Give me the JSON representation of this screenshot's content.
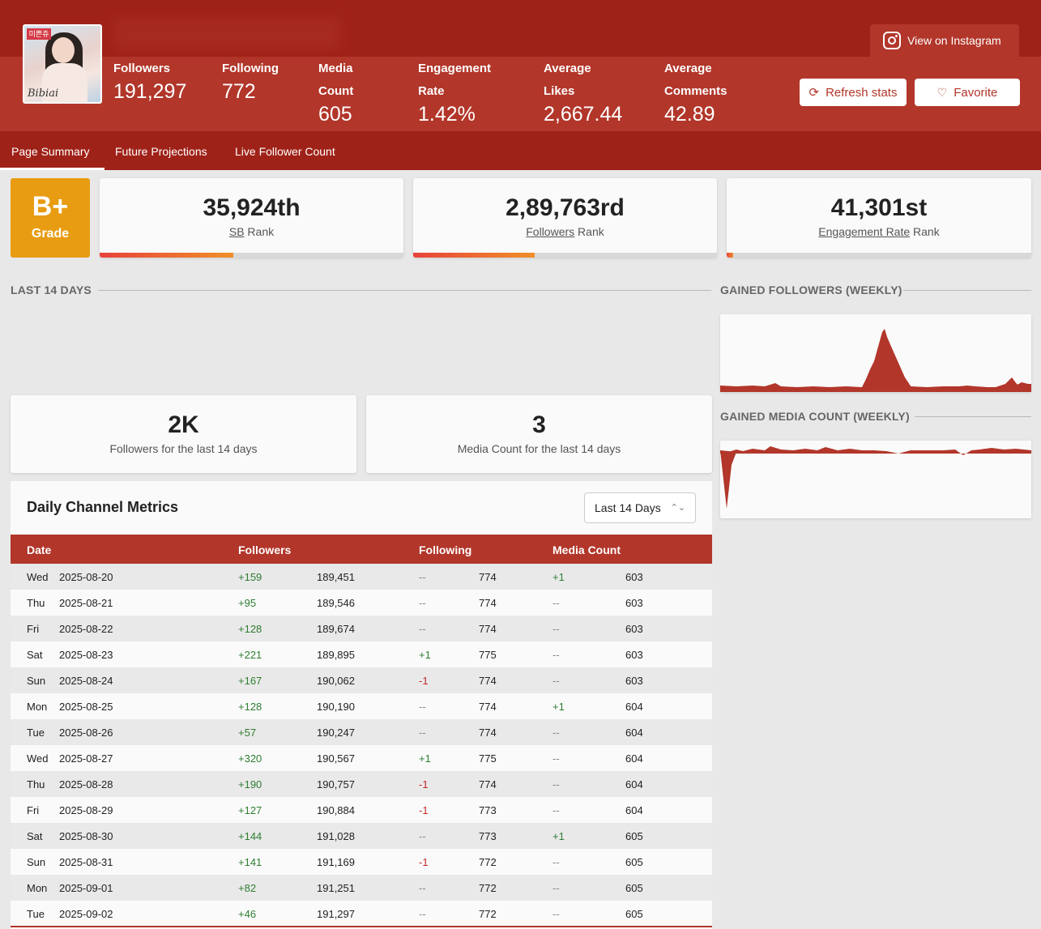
{
  "header": {
    "stats": [
      {
        "label": "Followers",
        "value": "191,297"
      },
      {
        "label": "Following",
        "value": "772"
      },
      {
        "label": "Media Count",
        "value": "605"
      },
      {
        "label": "Engagement Rate",
        "value": "1.42%"
      },
      {
        "label": "Average Likes",
        "value": "2,667.44"
      },
      {
        "label": "Average Comments",
        "value": "42.89"
      }
    ],
    "instagram_button": "View on Instagram",
    "refresh_button": "Refresh stats",
    "favorite_button": "Favorite",
    "avatar_tag": "미쁜쥬",
    "avatar_signature": "Bibiai"
  },
  "tabs": [
    "Page Summary",
    "Future Projections",
    "Live Follower Count"
  ],
  "grade": {
    "value": "B+",
    "label": "Grade"
  },
  "ranks": [
    {
      "value": "35,924th",
      "link": "SB",
      "suffix": " Rank",
      "fill": 0.44
    },
    {
      "value": "2,89,763rd",
      "link": "Followers",
      "suffix": " Rank",
      "fill": 0.4
    },
    {
      "value": "41,301st",
      "link": "Engagement Rate",
      "suffix": " Rank",
      "fill": 0.02
    }
  ],
  "sections": {
    "last14": "LAST 14 DAYS",
    "gained_followers": "GAINED FOLLOWERS (WEEKLY)",
    "gained_media": "GAINED MEDIA COUNT (WEEKLY)"
  },
  "summary": [
    {
      "value": "2K",
      "label": "Followers for the last 14 days"
    },
    {
      "value": "3",
      "label": "Media Count for the last 14 days"
    }
  ],
  "table": {
    "title": "Daily Channel Metrics",
    "range_select": "Last 14 Days",
    "columns": [
      "Date",
      "Followers",
      "Following",
      "Media Count"
    ],
    "rows": [
      [
        "Wed",
        "2025-08-20",
        "+159",
        "189,451",
        "--",
        "774",
        "+1",
        "603"
      ],
      [
        "Thu",
        "2025-08-21",
        "+95",
        "189,546",
        "--",
        "774",
        "--",
        "603"
      ],
      [
        "Fri",
        "2025-08-22",
        "+128",
        "189,674",
        "--",
        "774",
        "--",
        "603"
      ],
      [
        "Sat",
        "2025-08-23",
        "+221",
        "189,895",
        "+1",
        "775",
        "--",
        "603"
      ],
      [
        "Sun",
        "2025-08-24",
        "+167",
        "190,062",
        "-1",
        "774",
        "--",
        "603"
      ],
      [
        "Mon",
        "2025-08-25",
        "+128",
        "190,190",
        "--",
        "774",
        "+1",
        "604"
      ],
      [
        "Tue",
        "2025-08-26",
        "+57",
        "190,247",
        "--",
        "774",
        "--",
        "604"
      ],
      [
        "Wed",
        "2025-08-27",
        "+320",
        "190,567",
        "+1",
        "775",
        "--",
        "604"
      ],
      [
        "Thu",
        "2025-08-28",
        "+190",
        "190,757",
        "-1",
        "774",
        "--",
        "604"
      ],
      [
        "Fri",
        "2025-08-29",
        "+127",
        "190,884",
        "-1",
        "773",
        "--",
        "604"
      ],
      [
        "Sat",
        "2025-08-30",
        "+144",
        "191,028",
        "--",
        "773",
        "+1",
        "605"
      ],
      [
        "Sun",
        "2025-08-31",
        "+141",
        "191,169",
        "-1",
        "772",
        "--",
        "605"
      ],
      [
        "Mon",
        "2025-09-01",
        "+82",
        "191,251",
        "--",
        "772",
        "--",
        "605"
      ],
      [
        "Tue",
        "2025-09-02",
        "+46",
        "191,297",
        "--",
        "772",
        "--",
        "605"
      ]
    ]
  },
  "colors": {
    "brand_dark": "#9f2218",
    "brand": "#b2362a",
    "grade": "#e89c12",
    "positive": "#2e7d32",
    "negative": "#c62828"
  },
  "icons": [
    "instagram-icon",
    "refresh-icon",
    "heart-icon",
    "chevron-updown-icon"
  ]
}
